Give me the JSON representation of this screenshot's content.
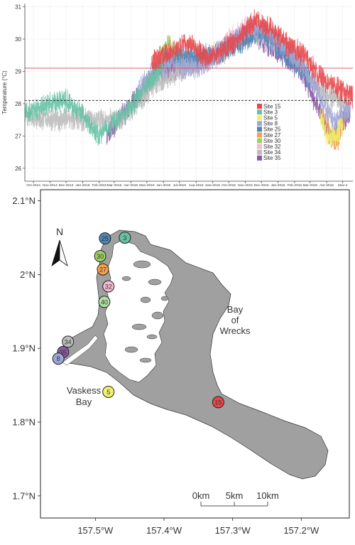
{
  "chart_data": [
    {
      "type": "line",
      "ylabel": "Temperature (°C)",
      "xlabel": "",
      "title": "",
      "ylim": [
        25.6,
        31.1
      ],
      "xlim": [
        "2014-09-15",
        "2016-05-20"
      ],
      "y_ticks": [
        26,
        27,
        28,
        29,
        30,
        31
      ],
      "x_ticks": [
        "2014-10-01",
        "2014-11-01",
        "2014-12-01",
        "2015-01-01",
        "2015-02-01",
        "2015-03-01",
        "2015-04-01",
        "2015-05-01",
        "2015-06-01",
        "2015-07-01",
        "2015-08-01",
        "2015-09-01",
        "2015-10-01",
        "2015-11-01",
        "2015-12-01",
        "2016-01-01",
        "2016-02-01",
        "2016-03-01",
        "2016-04-01",
        "2016-05-01"
      ],
      "x_tick_labels": [
        "Oct-2014",
        "Nov-2014",
        "Dec-2014",
        "Jan-2015",
        "Feb-2015",
        "Mar-2015",
        "Apr-2015",
        "May-2015",
        "Jun-2015",
        "Jul-2015",
        "Aug-2015",
        "Sep-2015",
        "Oct-2015",
        "Nov-2015",
        "Dec-2015",
        "Jan-2016",
        "Feb-2016",
        "Mar-2016",
        "Apr-2016",
        "May-2"
      ],
      "reference_lines": [
        {
          "y": 29.1,
          "style": "solid",
          "color": "#d9465a"
        },
        {
          "y": 28.1,
          "style": "dashed",
          "color": "#333333"
        }
      ],
      "grid": true,
      "legend_position": "bottom-right",
      "series": [
        {
          "name": "Site 15",
          "color": "#e8474a",
          "x": [
            "2015-05-10",
            "2015-06-15",
            "2015-07-20",
            "2015-08-20",
            "2015-09-25",
            "2015-10-25",
            "2015-11-20",
            "2015-12-20",
            "2016-01-20",
            "2016-02-20",
            "2016-03-15",
            "2016-04-10",
            "2016-05-20"
          ],
          "y": [
            29.3,
            29.6,
            29.9,
            29.4,
            29.7,
            30.1,
            30.6,
            30.3,
            29.8,
            29.5,
            28.9,
            28.6,
            28.2
          ]
        },
        {
          "name": "Site 3",
          "color": "#66c2a5",
          "x": [
            "2014-09-15",
            "2014-10-15",
            "2014-11-01",
            "2014-12-01",
            "2015-01-01",
            "2015-02-01",
            "2015-03-01",
            "2015-04-01",
            "2015-05-01",
            "2015-06-01"
          ],
          "y": [
            27.7,
            27.9,
            28.0,
            28.1,
            27.7,
            27.0,
            27.4,
            27.9,
            28.6,
            29.2
          ]
        },
        {
          "name": "Site 5",
          "color": "#f2ef6d",
          "x": [
            "2016-03-20",
            "2016-04-01",
            "2016-04-15",
            "2016-05-01"
          ],
          "y": [
            27.6,
            27.0,
            26.9,
            27.4
          ]
        },
        {
          "name": "Site 8",
          "color": "#9fa6d4",
          "x": [
            "2015-04-15",
            "2015-05-15",
            "2015-06-15",
            "2015-07-15",
            "2015-08-15",
            "2015-09-15",
            "2015-10-15",
            "2015-11-15",
            "2015-12-15",
            "2016-01-15",
            "2016-02-15",
            "2016-03-15",
            "2016-04-15",
            "2016-05-15"
          ],
          "y": [
            28.5,
            29.0,
            29.3,
            29.1,
            29.2,
            29.6,
            30.0,
            30.4,
            30.2,
            29.7,
            29.2,
            28.4,
            27.4,
            27.9
          ]
        },
        {
          "name": "Site 25",
          "color": "#4b88b8",
          "x": [
            "2015-06-01",
            "2015-09-01",
            "2015-12-01",
            "2016-03-01"
          ],
          "y": [
            29.4,
            29.5,
            30.2,
            28.8
          ]
        },
        {
          "name": "Site 27",
          "color": "#f7a04a",
          "x": [
            "2016-03-25",
            "2016-04-05",
            "2016-04-20",
            "2016-05-05"
          ],
          "y": [
            27.8,
            27.1,
            26.8,
            27.5
          ]
        },
        {
          "name": "Site 30",
          "color": "#9ed163",
          "x": [
            "2015-05-25",
            "2015-06-10",
            "2015-06-25",
            "2015-07-10"
          ],
          "y": [
            29.4,
            29.9,
            29.5,
            29.3
          ]
        },
        {
          "name": "Site 32",
          "color": "#f4bad4",
          "x": [
            "2015-09-01",
            "2015-11-01",
            "2016-01-01"
          ],
          "y": [
            29.5,
            30.4,
            29.8
          ]
        },
        {
          "name": "Site 34",
          "color": "#bdbdbd",
          "x": [
            "2014-09-15",
            "2014-11-15",
            "2015-01-15",
            "2015-03-15",
            "2015-05-15",
            "2015-07-15",
            "2015-09-15",
            "2015-11-15",
            "2016-01-15",
            "2016-03-15",
            "2016-05-15"
          ],
          "y": [
            27.6,
            27.5,
            27.5,
            27.5,
            28.6,
            29.1,
            29.5,
            30.3,
            29.8,
            28.5,
            27.9
          ]
        },
        {
          "name": "Site 35",
          "color": "#8a5aa6",
          "x": [
            "2015-02-15",
            "2015-03-15",
            "2015-04-15",
            "2015-05-15",
            "2015-08-15",
            "2015-11-15",
            "2016-02-15",
            "2016-04-10",
            "2016-05-15"
          ],
          "y": [
            27.0,
            27.6,
            28.2,
            28.9,
            29.3,
            30.2,
            29.0,
            26.9,
            27.8
          ]
        }
      ]
    },
    {
      "type": "map",
      "x_ticks": [
        -157.5,
        -157.4,
        -157.3,
        -157.2
      ],
      "x_tick_labels": [
        "157.5°W",
        "157.4°W",
        "157.3°W",
        "157.2°W"
      ],
      "y_ticks": [
        1.7,
        1.8,
        1.9,
        2.0,
        2.1
      ],
      "y_tick_labels": [
        "1.7°N",
        "1.8°N",
        "1.9°N",
        "2°N",
        "2.1°N"
      ],
      "xlim": [
        -157.58,
        -157.13
      ],
      "ylim": [
        1.67,
        2.115
      ],
      "north_label": "N",
      "place_labels": [
        {
          "id": "bay-of-wrecks",
          "lines": [
            "Bay",
            "of",
            "Wrecks"
          ]
        },
        {
          "id": "vaskess-bay",
          "lines": [
            "Vaskess",
            "Bay"
          ]
        }
      ],
      "scale_bar": {
        "labels": [
          "0km",
          "5km",
          "10km"
        ]
      },
      "sites": [
        {
          "label": "25",
          "color": "#4b88b8",
          "lon": -157.486,
          "lat": 2.049
        },
        {
          "label": "3",
          "color": "#66c2a5",
          "lon": -157.457,
          "lat": 2.05
        },
        {
          "label": "30",
          "color": "#9ed163",
          "lon": -157.493,
          "lat": 2.025
        },
        {
          "label": "27",
          "color": "#f7a04a",
          "lon": -157.489,
          "lat": 2.007
        },
        {
          "label": "32",
          "color": "#f4bad4",
          "lon": -157.481,
          "lat": 1.984
        },
        {
          "label": "40",
          "color": "#b2dfa6",
          "lon": -157.487,
          "lat": 1.963
        },
        {
          "label": "34",
          "color": "#bdbdbd",
          "lon": -157.54,
          "lat": 1.909
        },
        {
          "label": "35",
          "color": "#8a5aa6",
          "lon": -157.547,
          "lat": 1.895
        },
        {
          "label": "8",
          "color": "#9fa6d4",
          "lon": -157.554,
          "lat": 1.886
        },
        {
          "label": "5",
          "color": "#f2ef6d",
          "lon": -157.481,
          "lat": 1.841
        },
        {
          "label": "15",
          "color": "#e8474a",
          "lon": -157.321,
          "lat": 1.827
        }
      ]
    }
  ]
}
